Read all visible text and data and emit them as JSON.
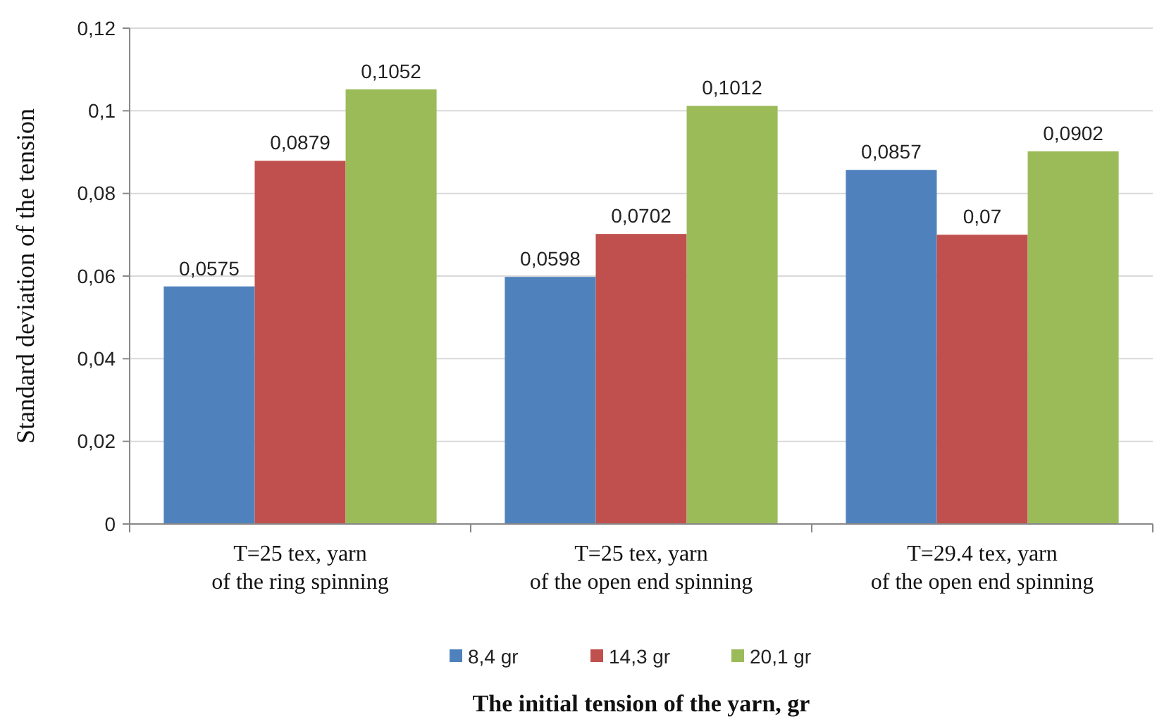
{
  "chart_data": {
    "type": "bar",
    "xlabel": "The initial tension of the yarn, gr",
    "ylabel": "Standard deviation of the tension",
    "categories": [
      "T=25 tex, yarn\nof the ring spinning",
      "T=25 tex, yarn\nof the open end spinning",
      "T=29.4 tex, yarn\nof the open end spinning"
    ],
    "series": [
      {
        "name": "8,4 gr",
        "color": "#4f81bd",
        "values": [
          0.0575,
          0.0598,
          0.0857
        ],
        "value_labels": [
          "0,0575",
          "0,0598",
          "0,0857"
        ]
      },
      {
        "name": "14,3 gr",
        "color": "#c0504d",
        "values": [
          0.0879,
          0.0702,
          0.07
        ],
        "value_labels": [
          "0,0879",
          "0,0702",
          "0,07"
        ]
      },
      {
        "name": "20,1 gr",
        "color": "#9bbb59",
        "values": [
          0.1052,
          0.1012,
          0.0902
        ],
        "value_labels": [
          "0,1052",
          "0,1012",
          "0,0902"
        ]
      }
    ],
    "ylim": [
      0,
      0.12
    ],
    "yticks": [
      0,
      {
        "value": 0.02,
        "label": "0,02"
      },
      {
        "value": 0.04,
        "label": "0,04"
      },
      {
        "value": 0.06,
        "label": "0,06"
      },
      {
        "value": 0.08,
        "label": "0,08"
      },
      {
        "value": 0.1,
        "label": "0,1"
      },
      {
        "value": 0.12,
        "label": "0,12"
      }
    ],
    "grid": "y",
    "legend": "bottom"
  }
}
